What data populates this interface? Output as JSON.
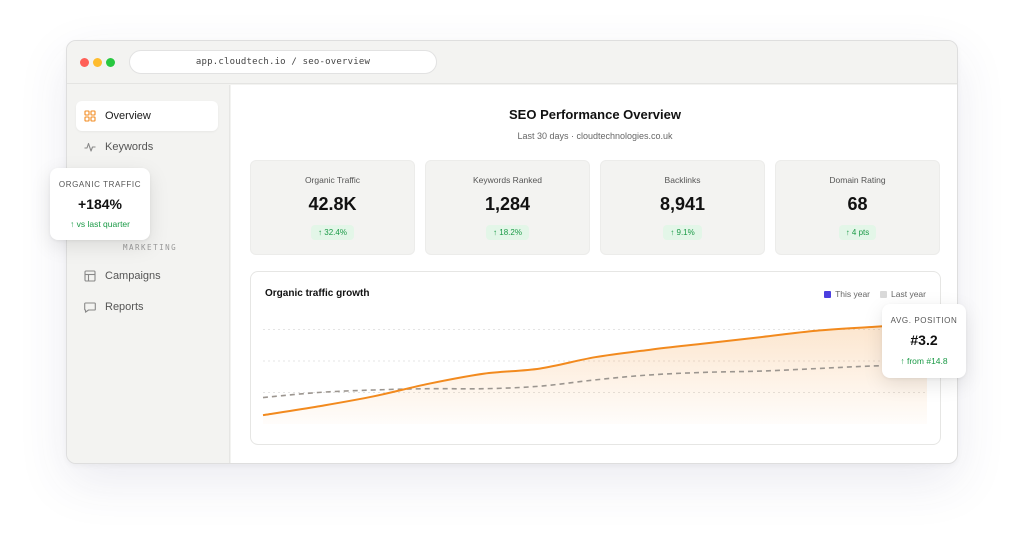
{
  "browser": {
    "url": "app.cloudtech.io / seo-overview"
  },
  "sidebar": {
    "items": [
      {
        "label": "Overview",
        "icon": "grid-icon"
      },
      {
        "label": "Keywords",
        "icon": "activity-icon"
      },
      {
        "label": "Campaigns",
        "icon": "layout-icon"
      },
      {
        "label": "Reports",
        "icon": "chat-icon"
      }
    ],
    "section_label": "MARKETING"
  },
  "header": {
    "title": "SEO Performance Overview",
    "subtitle": "Last 30 days · cloudtechnologies.co.uk"
  },
  "kpis": [
    {
      "label": "Organic Traffic",
      "value": "42.8K",
      "delta": "↑ 32.4%"
    },
    {
      "label": "Keywords Ranked",
      "value": "1,284",
      "delta": "↑ 18.2%"
    },
    {
      "label": "Backlinks",
      "value": "8,941",
      "delta": "↑ 9.1%"
    },
    {
      "label": "Domain Rating",
      "value": "68",
      "delta": "↑ 4 pts"
    }
  ],
  "chart": {
    "title": "Organic traffic growth",
    "legend_this_year": "This year",
    "legend_last_year": "Last year"
  },
  "floating_left": {
    "label": "ORGANIC TRAFFIC",
    "value": "+184%",
    "delta": "↑ vs last quarter"
  },
  "floating_right": {
    "label": "AVG. POSITION",
    "value": "#3.2",
    "delta": "↑ from #14.8"
  },
  "colors": {
    "accent": "#f28a1e",
    "this_year_legend": "#4b3fe0",
    "last_year_legend": "#d9d9d9",
    "last_year_line": "#9c9690",
    "positive": "#1a9a46"
  },
  "chart_data": {
    "type": "area",
    "title": "Organic traffic growth",
    "xlabel": "",
    "ylabel": "",
    "grid": true,
    "legend": "top-right",
    "x": [
      0,
      1,
      2,
      3,
      4,
      5,
      6,
      7,
      8,
      9,
      10,
      11,
      12
    ],
    "ylim": [
      0,
      100
    ],
    "series": [
      {
        "name": "This year",
        "values": [
          7,
          14,
          22,
          32,
          40,
          44,
          53,
          59,
          64,
          69,
          74,
          77,
          80
        ]
      },
      {
        "name": "Last year",
        "values": [
          21,
          25,
          27,
          28,
          28,
          30,
          35,
          39,
          41,
          42,
          44,
          46,
          47
        ]
      }
    ]
  }
}
